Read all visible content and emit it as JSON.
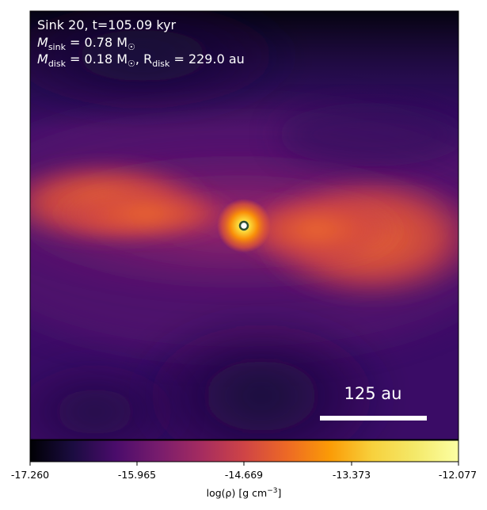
{
  "panel": {
    "line1": "Sink 20, t=105.09 kyr",
    "line2_prefix": "M",
    "line2_sub": "sink",
    "line2_rest": " = 0.78 M",
    "line2_sun": "☉",
    "line3_prefix": "M",
    "line3_sub": "disk",
    "line3_mid": " = 0.18 M",
    "line3_sun": "☉",
    "line3_sep": ", R",
    "line3_sub2": "disk",
    "line3_rest": " = 229.0 au"
  },
  "scalebar": {
    "label": "125 au"
  },
  "colorbar": {
    "ticks": [
      "-17.260",
      "-15.965",
      "-14.669",
      "-13.373",
      "-12.077"
    ],
    "label_main": "log(ρ) [g cm",
    "label_exp": "−3",
    "label_end": "]",
    "colormap": "inferno",
    "range": [
      -17.26,
      -12.077
    ]
  },
  "colors": {
    "background_dark": "#2a0f57",
    "lobe_orange": "#e9632e",
    "core": "#fde44a",
    "sink_marker_edge": "#2f4f2f"
  }
}
